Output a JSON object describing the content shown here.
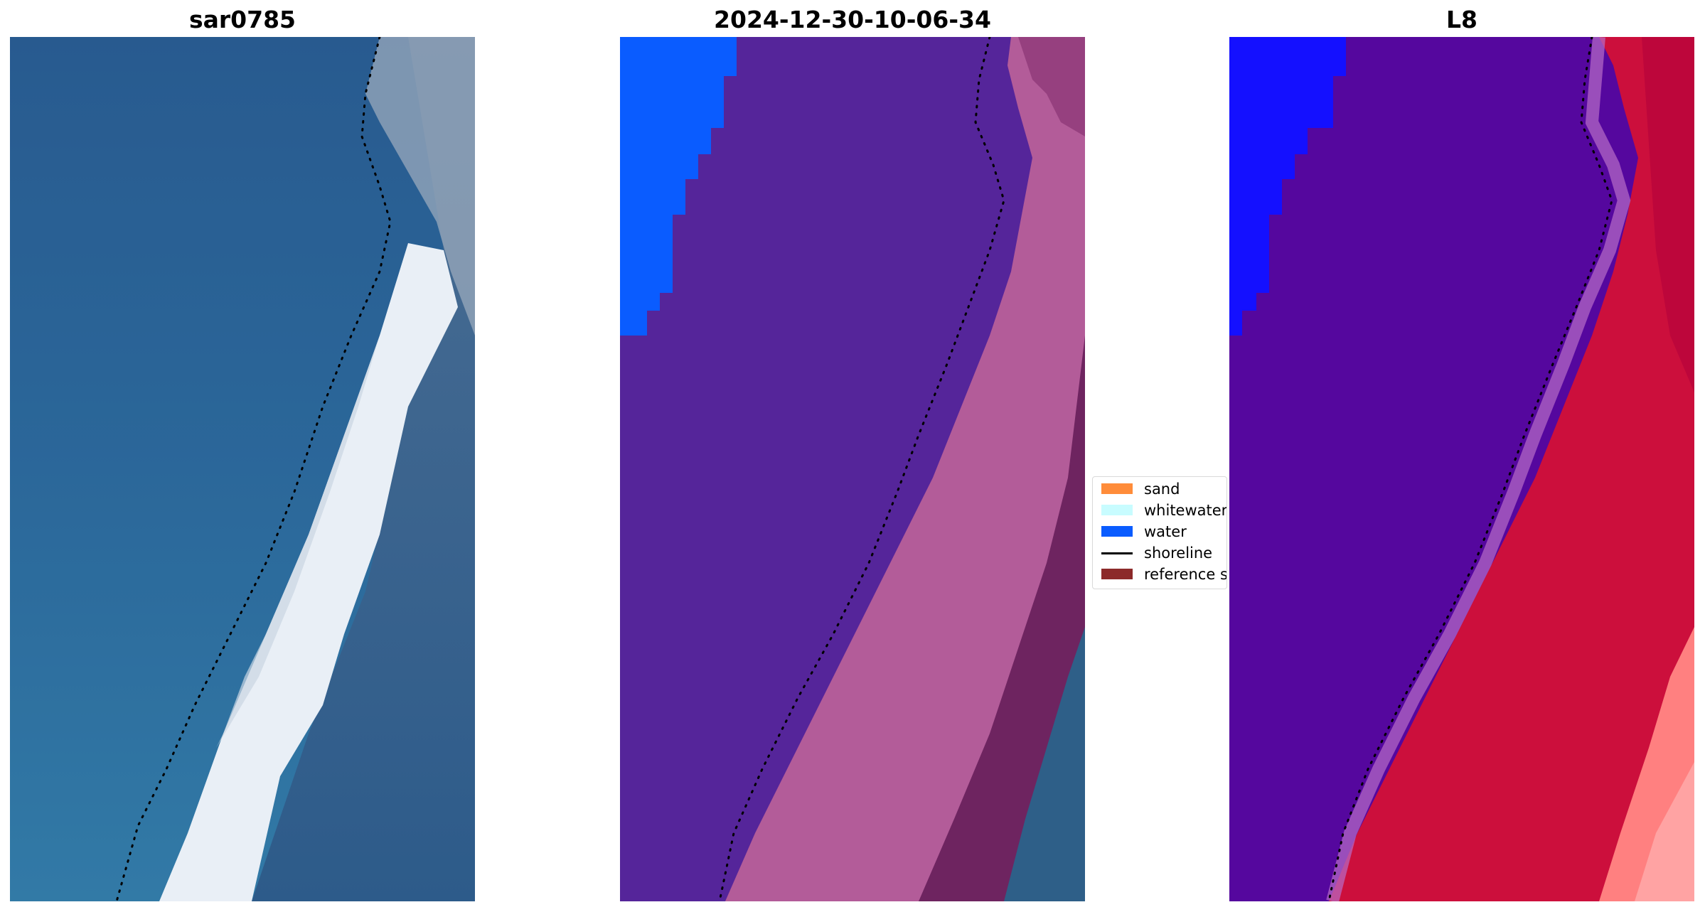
{
  "panels": [
    {
      "title": "sar0785"
    },
    {
      "title": "2024-12-30-10-06-34"
    },
    {
      "title": "L8"
    }
  ],
  "legend": {
    "items": [
      {
        "label": "sand",
        "color": "#ff8c3a",
        "kind": "patch"
      },
      {
        "label": "whitewater",
        "color": "#c8fcff",
        "kind": "patch"
      },
      {
        "label": "water",
        "color": "#0a5cff",
        "kind": "patch"
      },
      {
        "label": "shoreline",
        "color": "#000000",
        "kind": "line"
      },
      {
        "label": "reference sh",
        "color": "#8c2a2a",
        "kind": "patch"
      }
    ]
  },
  "colors": {
    "rgb_water": "#2f6a9a",
    "rgb_surf": "#e8f0f6",
    "class_water": "#0a5cff",
    "class_purple": "#55259a",
    "class_pink": "#b35c99",
    "class_maroon": "#6e2460",
    "class_teal": "#2e5f88",
    "ndwi_blue": "#1410ff",
    "ndwi_purple": "#55079e",
    "ndwi_red": "#cc0f3c",
    "ndwi_salmon": "#ff8080"
  }
}
